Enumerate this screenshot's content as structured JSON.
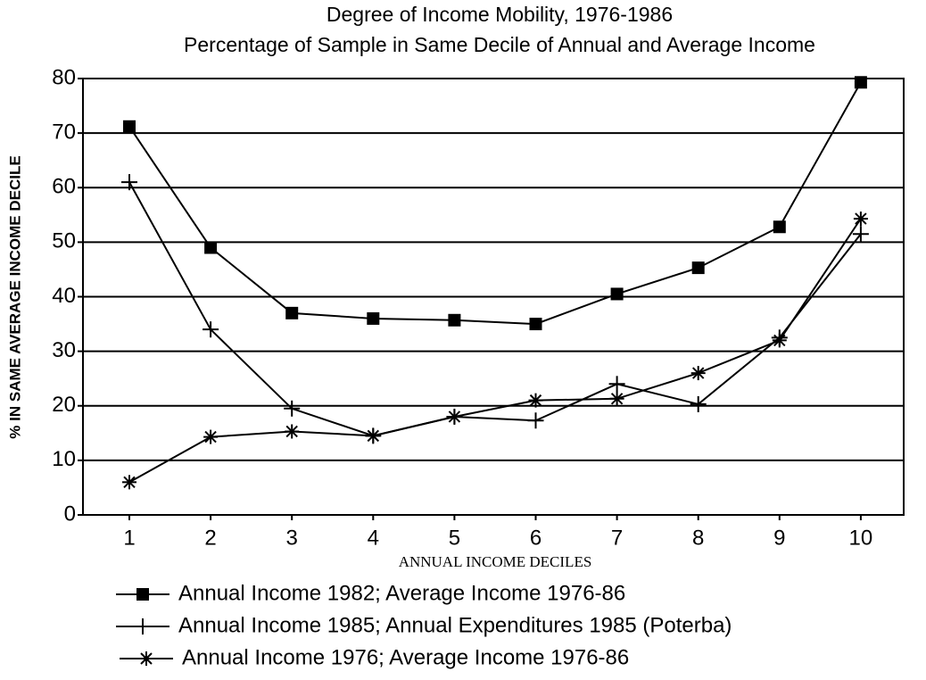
{
  "chart_data": {
    "type": "line",
    "title": "Degree of Income Mobility, 1976-1986",
    "subtitle": "Percentage of Sample in Same Decile of Annual and Average Income",
    "x_label": "ANNUAL INCOME DECILES",
    "y_label": "% IN SAME AVERAGE INCOME DECILE",
    "categories": [
      "1",
      "2",
      "3",
      "4",
      "5",
      "6",
      "7",
      "8",
      "9",
      "10"
    ],
    "series": [
      {
        "name": "Annual Income 1982; Average Income 1976-86",
        "color": "#000000",
        "marker": "square",
        "values": [
          71.2,
          49,
          37,
          36,
          35.7,
          35,
          40.5,
          45.3,
          52.8,
          79.3
        ]
      },
      {
        "name": "Annual Income 1985; Annual Expenditures 1985 (Poterba)",
        "color": "#000000",
        "marker": "plus",
        "values": [
          61,
          34,
          19.5,
          14.5,
          18,
          17.3,
          24,
          20.3,
          32.5,
          51.5
        ]
      },
      {
        "name": "Annual Income 1976; Average Income 1976-86",
        "color": "#000000",
        "marker": "star",
        "values": [
          6,
          14.3,
          15.3,
          14.5,
          18,
          21,
          21.3,
          26,
          32,
          54.3
        ]
      }
    ],
    "ylim": [
      0,
      80
    ],
    "yticks": [
      0,
      10,
      20,
      30,
      40,
      50,
      60,
      70,
      80
    ],
    "grid": true
  }
}
